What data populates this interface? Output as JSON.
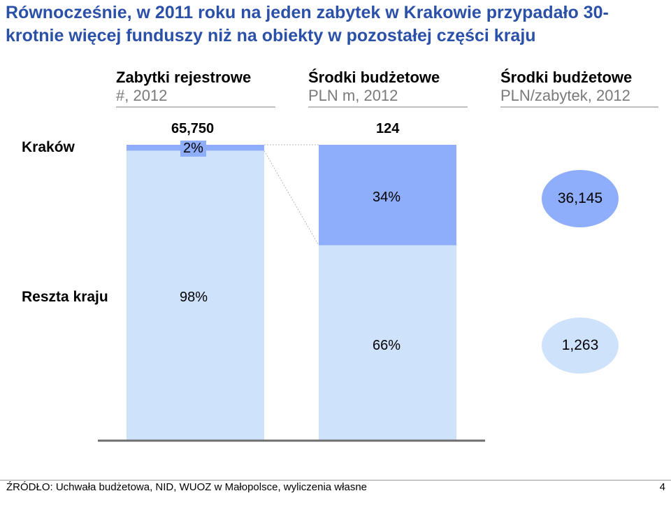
{
  "title": "Równocześnie, w 2011 roku na jeden zabytek w Krakowie przypadało 30-krotnie więcej funduszy niż na obiekty w pozostałej części kraju",
  "columns": [
    {
      "heading": "Zabytki rejestrowe",
      "subheading": "#, 2012"
    },
    {
      "heading": "Środki budżetowe",
      "subheading": "PLN m, 2012"
    },
    {
      "heading": "Środki budżetowe",
      "subheading": "PLN/zabytek, 2012"
    }
  ],
  "rows": {
    "krakow": "Kraków",
    "reszta": "Reszta kraju"
  },
  "colors": {
    "krakow": "#8eadfa",
    "reszta": "#cfe2fb",
    "title": "#2b50a8",
    "axis": "#6e6e6e"
  },
  "chart_data": {
    "type": "bar",
    "categories": [
      "Zabytki rejestrowe",
      "Środki budżetowe"
    ],
    "series": [
      {
        "name": "Kraków",
        "values": [
          2,
          34
        ]
      },
      {
        "name": "Reszta kraju",
        "values": [
          98,
          66
        ]
      }
    ],
    "ylim": [
      0,
      100
    ],
    "labels": {
      "registry_total": "65,750",
      "budget_total": "124",
      "registry_krakow_pct": "2%",
      "registry_reszta_pct": "98%",
      "budget_krakow_pct": "34%",
      "budget_reszta_pct": "66%"
    },
    "per_monument": {
      "krakow": "36,145",
      "reszta": "1,263"
    }
  },
  "footer": {
    "source": "ŹRÓDŁO: Uchwała budżetowa, NID, WUOZ w Małopolsce, wyliczenia własne",
    "page": "4"
  }
}
